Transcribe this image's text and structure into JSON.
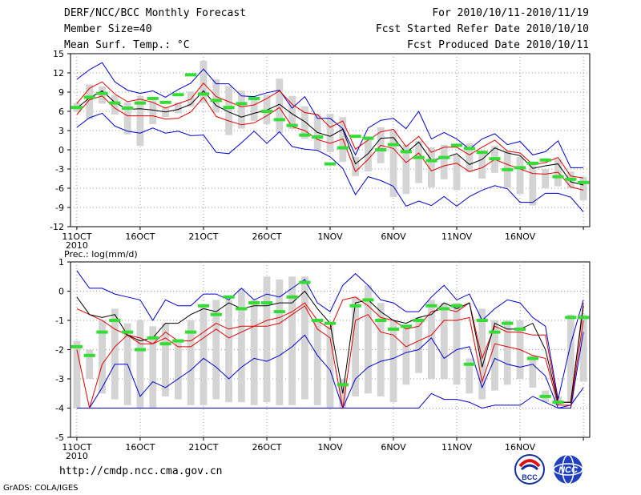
{
  "header": {
    "title": "DERF/NCC/BCC Monthly Forecast",
    "member": "Member Size=40",
    "variable": "Mean Surf. Temp.: °C",
    "period": "For 2010/10/11-2010/11/19",
    "fcst_start": "Fcst Started Refer Date 2010/10/10",
    "fcst_produced": "Fcst Produced Date 2010/10/11"
  },
  "footer": {
    "url": "http://cmdp.ncc.cma.gov.cn",
    "grads": "GrADS: COLA/IGES",
    "logo_bcc": "BCC",
    "logo_ncc": "NCC"
  },
  "colors": {
    "mean": "#000000",
    "inner": "#e00000",
    "outer": "#0000cc",
    "obs": "#33dd33",
    "box": "#d4d4d4",
    "grid": "#999999"
  },
  "chart_data": [
    {
      "type": "line",
      "title": "Mean Surf. Temp.: °C",
      "ylim": [
        -12,
        15
      ],
      "yticks": [
        -12,
        -9,
        -6,
        -3,
        0,
        3,
        6,
        9,
        12,
        15
      ],
      "x_tick_days": [
        0,
        5,
        10,
        15,
        20,
        25,
        30,
        35,
        40
      ],
      "x_tick_labels": [
        "11OCT",
        "16OCT",
        "21OCT",
        "26OCT",
        "1NOV",
        "6NOV",
        "11NOV",
        "16NOV",
        ""
      ],
      "x_year_label": "2010",
      "series": [
        {
          "name": "max",
          "values": [
            11,
            12.5,
            13.6,
            10.6,
            9.3,
            8.8,
            9.2,
            8.2,
            9.4,
            10.4,
            12.6,
            10.3,
            10.3,
            8.4,
            8.3,
            8.9,
            9.3,
            6.5,
            8.3,
            4.9,
            4.9,
            3.3,
            -0.8,
            3.4,
            4.6,
            4.9,
            3.3,
            6.0,
            1.7,
            2.7,
            1.7,
            0.1,
            1.7,
            2.5,
            0.8,
            1.3,
            -0.8,
            -0.3,
            1.4,
            -2.8,
            -2.8
          ]
        },
        {
          "name": "upper",
          "values": [
            7.2,
            9.6,
            10.6,
            8.7,
            7.5,
            7.9,
            7.4,
            6.5,
            7.2,
            7.9,
            10.4,
            8.3,
            7.5,
            6.7,
            7.0,
            8.0,
            9.2,
            7.1,
            5.8,
            5.5,
            3.5,
            4.5,
            0.1,
            1.5,
            2.8,
            3.2,
            0.5,
            2.1,
            -0.4,
            0.4,
            0.4,
            -0.8,
            0.4,
            1.5,
            -0.2,
            -0.5,
            -2.3,
            -2.0,
            -1.2,
            -4.1,
            -4.4
          ]
        },
        {
          "name": "mean",
          "values": [
            6.5,
            8.1,
            9.2,
            7.4,
            6.3,
            6.4,
            6.2,
            5.9,
            6.3,
            7.1,
            9.2,
            6.9,
            5.9,
            5.1,
            5.7,
            6.2,
            7.1,
            5.6,
            4.4,
            2.7,
            2.1,
            3.2,
            -2.2,
            -0.6,
            1.8,
            1.9,
            -0.5,
            1.2,
            -1.6,
            -1.3,
            -0.6,
            -2.3,
            -1.5,
            0.3,
            -0.5,
            -0.9,
            -2.9,
            -2.5,
            -2.2,
            -5.0,
            -5.5
          ]
        },
        {
          "name": "lower",
          "values": [
            5.5,
            7.8,
            8.4,
            6.5,
            5.3,
            5.3,
            5.3,
            4.8,
            4.9,
            5.9,
            8.2,
            5.2,
            4.5,
            3.9,
            4.2,
            5.3,
            6.6,
            3.6,
            3.0,
            1.6,
            1.0,
            1.7,
            -3.4,
            -1.5,
            0.7,
            0.2,
            -2.0,
            -0.5,
            -3.3,
            -2.5,
            -2.1,
            -3.4,
            -2.8,
            -1.5,
            -2.3,
            -3.0,
            -3.7,
            -3.8,
            -3.5,
            -5.8,
            -6.3
          ]
        },
        {
          "name": "min",
          "values": [
            3.5,
            5.0,
            5.7,
            3.7,
            2.9,
            2.6,
            3.4,
            2.6,
            2.9,
            2.2,
            2.3,
            -0.4,
            -0.6,
            1.1,
            2.9,
            1.0,
            2.8,
            0.5,
            0.1,
            -0.1,
            -1.1,
            -2.9,
            -7.0,
            -4.2,
            -4.8,
            -5.7,
            -8.8,
            -8.0,
            -8.7,
            -7.3,
            -8.8,
            -7.3,
            -6.3,
            -5.6,
            -6.1,
            -8.2,
            -8.2,
            -6.8,
            -6.8,
            -7.4,
            -9.7
          ]
        },
        {
          "name": "obs",
          "values": [
            6.6,
            8.2,
            8.8,
            7.3,
            6.5,
            7.3,
            8.0,
            7.4,
            8.6,
            11.7,
            8.7,
            7.7,
            6.6,
            7.2,
            8.0,
            6.0,
            4.7,
            3.8,
            2.3,
            2.0,
            -2.2,
            0.3,
            2.1,
            1.8,
            0.0,
            0.8,
            -0.3,
            -1.2,
            -1.7,
            -1.2,
            0.7,
            0.2,
            -0.4,
            -1.4,
            -3.1,
            -2.8,
            -2.1,
            -1.6,
            -4.2,
            -4.6,
            -5.1
          ]
        },
        {
          "name": "box_top",
          "values": [
            7.3,
            10.2,
            9.9,
            8.5,
            7.4,
            8.4,
            7.7,
            6.7,
            7.4,
            9.1,
            13.9,
            11.0,
            9.9,
            9.2,
            8.2,
            8.6,
            11.1,
            8.4,
            6.8,
            5.6,
            5.6,
            5.1,
            -1.1,
            2.1,
            3.5,
            3.0,
            0.8,
            1.4,
            0.4,
            0.8,
            -0.8,
            1.0,
            -0.1,
            0.6,
            -0.2,
            -1.1,
            -2.0,
            -3.0,
            -1.5,
            -3.4,
            -4.2
          ]
        },
        {
          "name": "box_bottom",
          "values": [
            5.9,
            4.8,
            7.2,
            5.5,
            2.4,
            0.6,
            4.0,
            5.1,
            5.7,
            6.7,
            7.3,
            5.8,
            2.3,
            3.3,
            4.5,
            4.0,
            2.6,
            3.2,
            1.7,
            0.0,
            -0.4,
            -1.9,
            -4.1,
            -3.4,
            -2.1,
            -7.4,
            -6.9,
            -5.2,
            -5.9,
            -4.6,
            -6.3,
            -3.5,
            -4.5,
            -3.6,
            -5.9,
            -6.9,
            -8.7,
            -6.0,
            -5.7,
            -6.0,
            -7.9
          ]
        }
      ]
    },
    {
      "type": "line",
      "title": "Prec.: log(mm/d)",
      "ylim": [
        -5,
        1
      ],
      "yticks": [
        -5,
        -4,
        -3,
        -2,
        -1,
        0,
        1
      ],
      "x_tick_days": [
        0,
        5,
        10,
        15,
        20,
        25,
        30,
        35,
        40
      ],
      "x_tick_labels": [
        "11OCT",
        "16OCT",
        "21OCT",
        "26OCT",
        "1NOV",
        "6NOV",
        "11NOV",
        "16NOV",
        ""
      ],
      "x_year_label": "2010",
      "series": [
        {
          "name": "max",
          "values": [
            0.7,
            0.1,
            0.1,
            -0.1,
            -0.2,
            -0.3,
            -1.0,
            -0.3,
            -0.5,
            -0.5,
            -0.1,
            -0.1,
            -0.3,
            0.1,
            -0.3,
            -0.1,
            -0.2,
            0.1,
            0.4,
            -0.4,
            -0.7,
            0.2,
            0.6,
            0.2,
            -0.3,
            -0.4,
            -0.7,
            -0.7,
            -0.2,
            0.2,
            -0.3,
            -0.1,
            -1.0,
            -0.6,
            -0.3,
            -0.4,
            -0.9,
            -1.2,
            -3.7,
            -1.8,
            -0.3
          ]
        },
        {
          "name": "upper",
          "values": [
            -0.6,
            -0.8,
            -1.0,
            -1.3,
            -1.5,
            -1.6,
            -1.8,
            -1.4,
            -1.7,
            -1.7,
            -1.4,
            -1.1,
            -1.3,
            -1.2,
            -1.2,
            -1.0,
            -0.9,
            -0.7,
            -0.4,
            -1.0,
            -1.3,
            -0.3,
            -0.2,
            -0.5,
            -0.9,
            -1.0,
            -1.3,
            -1.2,
            -0.7,
            -0.6,
            -0.7,
            -0.4,
            -2.3,
            -1.2,
            -1.4,
            -1.4,
            -1.5,
            -1.5,
            -3.8,
            -3.8,
            -0.4
          ]
        },
        {
          "name": "mean",
          "values": [
            -0.2,
            -0.8,
            -0.9,
            -0.8,
            -1.5,
            -1.7,
            -1.6,
            -1.1,
            -1.1,
            -0.8,
            -0.6,
            -0.7,
            -0.4,
            -0.6,
            -0.5,
            -0.5,
            -0.4,
            -0.4,
            0.0,
            -0.6,
            -1.1,
            -3.5,
            -0.4,
            -0.3,
            -0.7,
            -1.0,
            -1.1,
            -0.9,
            -0.8,
            -0.4,
            -0.6,
            -0.4,
            -2.6,
            -1.1,
            -1.3,
            -1.3,
            -1.1,
            -2.0,
            -3.8,
            -3.8,
            -0.5
          ]
        },
        {
          "name": "lower",
          "values": [
            -2.0,
            -4.0,
            -2.5,
            -1.9,
            -1.5,
            -1.8,
            -1.8,
            -1.6,
            -1.9,
            -1.9,
            -1.6,
            -1.3,
            -1.6,
            -1.4,
            -1.2,
            -1.2,
            -1.1,
            -0.8,
            -0.5,
            -1.3,
            -1.6,
            -4.0,
            -1.0,
            -0.8,
            -1.4,
            -1.5,
            -1.9,
            -1.7,
            -1.5,
            -1.0,
            -1.0,
            -0.9,
            -3.1,
            -1.8,
            -1.9,
            -2.0,
            -2.2,
            -2.3,
            -3.9,
            -3.9,
            -1.0
          ]
        },
        {
          "name": "min",
          "values": [
            -4.0,
            -4.0,
            -3.3,
            -2.5,
            -2.5,
            -3.6,
            -3.1,
            -3.3,
            -3.0,
            -2.7,
            -2.3,
            -2.6,
            -3.0,
            -2.6,
            -2.3,
            -2.4,
            -2.2,
            -1.9,
            -1.5,
            -2.2,
            -2.7,
            -4.0,
            -3.0,
            -2.6,
            -2.4,
            -2.3,
            -2.1,
            -2.0,
            -1.6,
            -2.3,
            -2.0,
            -1.9,
            -3.3,
            -2.3,
            -2.5,
            -2.6,
            -2.5,
            -2.9,
            -4.0,
            -4.0,
            -1.4
          ]
        },
        {
          "name": "min_outer",
          "values": [
            -4.0,
            -4.0,
            -4.0,
            -4.0,
            -4.0,
            -4.0,
            -4.0,
            -4.0,
            -4.0,
            -4.0,
            -4.0,
            -4.0,
            -4.0,
            -4.0,
            -4.0,
            -4.0,
            -4.0,
            -4.0,
            -4.0,
            -4.0,
            -4.0,
            -4.0,
            -4.0,
            -4.0,
            -4.0,
            -4.0,
            -4.0,
            -4.0,
            -3.5,
            -3.7,
            -3.7,
            -3.8,
            -4.0,
            -3.9,
            -3.9,
            -3.9,
            -3.6,
            -3.8,
            -4.0,
            -3.9,
            -3.3
          ]
        },
        {
          "name": "obs",
          "values": [
            -1.9,
            -2.2,
            -1.4,
            -1.0,
            -1.4,
            -2.0,
            -1.6,
            -1.8,
            -1.7,
            -1.4,
            -0.5,
            -0.8,
            -0.2,
            -0.6,
            -0.4,
            -0.4,
            -0.7,
            -0.2,
            0.3,
            -1.0,
            -1.1,
            -3.2,
            -0.5,
            -0.3,
            -1.0,
            -1.3,
            -1.2,
            -1.0,
            -0.5,
            -0.6,
            -0.5,
            -2.5,
            -1.0,
            -1.4,
            -1.1,
            -1.3,
            -2.3,
            -3.6,
            -3.8,
            -0.9,
            -0.9
          ]
        },
        {
          "name": "box_top",
          "values": [
            -1.7,
            -2.0,
            -1.0,
            -0.6,
            -1.1,
            -1.0,
            -1.2,
            -1.1,
            -1.7,
            -1.0,
            -0.5,
            -0.3,
            -0.3,
            0.1,
            -0.3,
            0.5,
            0.4,
            0.5,
            0.5,
            -1.0,
            -1.2,
            -3.0,
            -0.2,
            0.2,
            -0.4,
            -1.0,
            -1.2,
            -0.9,
            -0.3,
            -0.4,
            -0.4,
            -2.3,
            -0.6,
            -1.0,
            -1.0,
            -1.0,
            -2.2,
            -3.4,
            -3.6,
            -0.8,
            -0.8
          ]
        },
        {
          "name": "box_bottom",
          "values": [
            -4.0,
            -3.0,
            -3.5,
            -3.7,
            -3.9,
            -4.0,
            -4.0,
            -3.6,
            -3.7,
            -3.9,
            -3.9,
            -3.7,
            -3.8,
            -3.8,
            -3.9,
            -3.8,
            -3.9,
            -3.9,
            -3.7,
            -3.9,
            -4.0,
            -4.0,
            -3.6,
            -3.5,
            -3.6,
            -3.8,
            -3.2,
            -2.8,
            -3.0,
            -3.0,
            -3.2,
            -3.5,
            -3.7,
            -3.4,
            -3.2,
            -3.0,
            -3.3,
            -3.8,
            -3.9,
            -3.8,
            -3.1
          ]
        }
      ]
    }
  ]
}
